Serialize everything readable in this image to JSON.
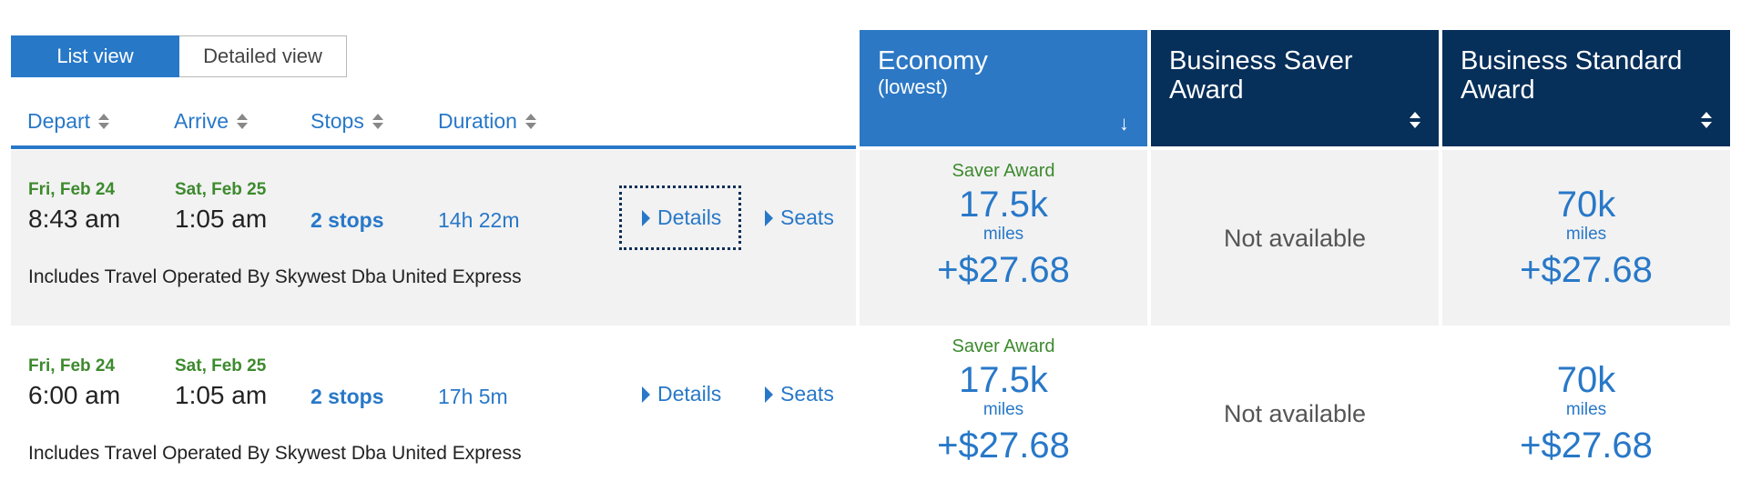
{
  "view_toggle": {
    "list": "List view",
    "detailed": "Detailed view"
  },
  "sort_columns": {
    "depart": "Depart",
    "arrive": "Arrive",
    "stops": "Stops",
    "duration": "Duration"
  },
  "fare_columns": {
    "economy": {
      "title": "Economy",
      "sub": "(lowest)",
      "sort_arrow": "↓"
    },
    "business_saver": {
      "title_line1": "Business Saver",
      "title_line2": "Award"
    },
    "business_standard": {
      "title_line1": "Business Standard",
      "title_line2": "Award"
    }
  },
  "flights": [
    {
      "depart_date": "Fri, Feb 24",
      "depart_time": "8:43 am",
      "arrive_date": "Sat, Feb 25",
      "arrive_time": "1:05 am",
      "stops": "2 stops",
      "duration": "14h 22m",
      "details": "Details",
      "seats": "Seats",
      "operated": "Includes Travel Operated By Skywest Dba United Express",
      "economy": {
        "label": "Saver Award",
        "miles": "17.5k",
        "unit": "miles",
        "tax": "+$27.68"
      },
      "business_saver": {
        "status": "Not available"
      },
      "business_standard": {
        "miles": "70k",
        "unit": "miles",
        "tax": "+$27.68"
      }
    },
    {
      "depart_date": "Fri, Feb 24",
      "depart_time": "6:00 am",
      "arrive_date": "Sat, Feb 25",
      "arrive_time": "1:05 am",
      "stops": "2 stops",
      "duration": "17h 5m",
      "details": "Details",
      "seats": "Seats",
      "operated": "Includes Travel Operated By Skywest Dba United Express",
      "economy": {
        "label": "Saver Award",
        "miles": "17.5k",
        "unit": "miles",
        "tax": "+$27.68"
      },
      "business_saver": {
        "status": "Not available"
      },
      "business_standard": {
        "miles": "70k",
        "unit": "miles",
        "tax": "+$27.68"
      }
    }
  ],
  "colors": {
    "accent": "#2878c8",
    "navy": "#062f5a",
    "green": "#3d8a2e",
    "row_gray": "#f2f2f2"
  }
}
